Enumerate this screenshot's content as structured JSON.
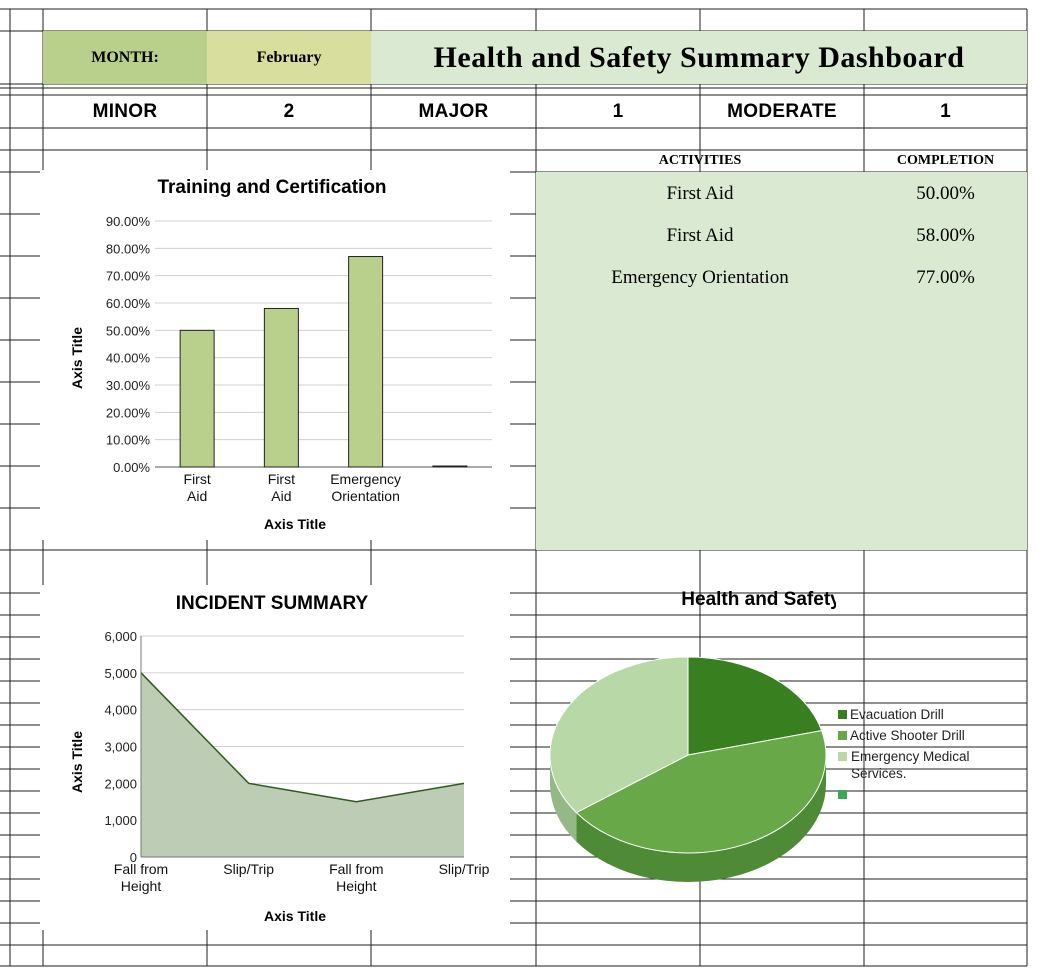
{
  "header": {
    "month_label": "MONTH:",
    "month_value": "February",
    "title": "Health and Safety Summary Dashboard"
  },
  "severity": [
    {
      "label": "MINOR",
      "value": "2"
    },
    {
      "label": "MAJOR",
      "value": "1"
    },
    {
      "label": "MODERATE",
      "value": "1"
    }
  ],
  "activities": {
    "col_activities": "ACTIVITIES",
    "col_completion": "COMPLETION",
    "rows": [
      {
        "activity": "First Aid",
        "completion": "50.00%"
      },
      {
        "activity": "First Aid",
        "completion": "58.00%"
      },
      {
        "activity": "Emergency Orientation",
        "completion": "77.00%"
      }
    ]
  },
  "colors": {
    "bar_fill": "#b9d08c",
    "area_fill": "#bdccb4",
    "area_line": "#2e5a1f",
    "pie_evacuation": "#38801f",
    "pie_active_shooter": "#68a848",
    "pie_emergency_medical": "#b8d8a8",
    "header_month": "#b9d08c",
    "header_value": "#d8de9e",
    "header_title": "#daead2"
  },
  "chart_data": [
    {
      "type": "bar",
      "title": "Training and Certification",
      "xlabel": "Axis Title",
      "ylabel": "Axis Title",
      "categories": [
        "First Aid",
        "First Aid",
        "Emergency Orientation",
        ""
      ],
      "values": [
        0.5,
        0.58,
        0.77,
        0
      ],
      "ylim": [
        0,
        0.9
      ],
      "yticks": [
        "0.00%",
        "10.00%",
        "20.00%",
        "30.00%",
        "40.00%",
        "50.00%",
        "60.00%",
        "70.00%",
        "80.00%",
        "90.00%"
      ],
      "grid": true
    },
    {
      "type": "area",
      "title": "INCIDENT SUMMARY",
      "xlabel": "Axis Title",
      "ylabel": "Axis Title",
      "categories": [
        "Fall from Height",
        "Slip/Trip",
        "Fall from Height",
        "Slip/Trip"
      ],
      "values": [
        5000,
        2000,
        1500,
        2000
      ],
      "ylim": [
        0,
        6000
      ],
      "yticks": [
        "0",
        "1,000",
        "2,000",
        "3,000",
        "4,000",
        "5,000",
        "6,000"
      ],
      "grid": true
    },
    {
      "type": "pie",
      "title": "Health and Safety",
      "labels": [
        "Evacuation Drill",
        "Active Shooter Drill",
        "Emergency Medical Services.",
        ""
      ],
      "values": [
        21,
        44,
        35,
        0
      ],
      "legend": "right"
    }
  ]
}
